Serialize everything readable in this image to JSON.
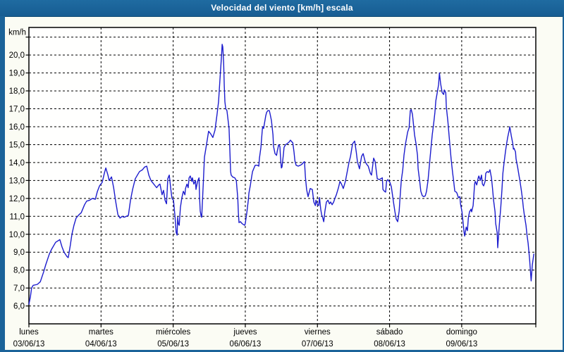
{
  "window": {
    "title": "Velocidad del viento [km/h] escala",
    "title_bar_color": "#1b6399",
    "border_color": "#1b6399",
    "background": "#fbfcf4"
  },
  "chart_data": {
    "type": "line",
    "title": "Velocidad del viento [km/h] escala",
    "line_color": "#1c1ccd",
    "grid": "dashed-black",
    "legend_position": "none",
    "y_axis": {
      "unit_label": "km/h",
      "min": 6,
      "max": 21,
      "tick_step": 1,
      "tick_values": [
        20,
        19,
        18,
        17,
        16,
        15,
        14,
        13,
        12,
        11,
        10,
        9,
        8,
        7,
        6
      ],
      "tick_labels": [
        "20,0",
        "19,0",
        "18,0",
        "17,0",
        "16,0",
        "15,0",
        "14,0",
        "13,0",
        "12,0",
        "11,0",
        "10,0",
        "9,0",
        "8,0",
        "7,0",
        "6,0"
      ]
    },
    "x_axis": {
      "hours_total": 168,
      "day_span_hours": 24,
      "days": [
        {
          "name": "lunes",
          "date": "03/06/13"
        },
        {
          "name": "martes",
          "date": "04/06/13"
        },
        {
          "name": "miércoles",
          "date": "05/06/13"
        },
        {
          "name": "jueves",
          "date": "06/06/13"
        },
        {
          "name": "viernes",
          "date": "07/06/13"
        },
        {
          "name": "sábado",
          "date": "08/06/13"
        },
        {
          "name": "domingo",
          "date": "09/06/13"
        }
      ]
    },
    "points": [
      [
        0.0,
        6.1
      ],
      [
        0.5,
        6.5
      ],
      [
        0.9,
        7.0
      ],
      [
        1.4,
        7.15
      ],
      [
        2.8,
        7.2
      ],
      [
        3.8,
        7.35
      ],
      [
        4.9,
        7.9
      ],
      [
        5.6,
        8.3
      ],
      [
        6.8,
        8.9
      ],
      [
        7.5,
        9.15
      ],
      [
        8.9,
        9.55
      ],
      [
        10.3,
        9.7
      ],
      [
        11.0,
        9.3
      ],
      [
        11.7,
        9.0
      ],
      [
        12.7,
        8.75
      ],
      [
        13.1,
        8.7
      ],
      [
        13.8,
        9.4
      ],
      [
        14.3,
        10.0
      ],
      [
        15.0,
        10.5
      ],
      [
        15.7,
        10.9
      ],
      [
        16.7,
        11.1
      ],
      [
        17.4,
        11.2
      ],
      [
        18.5,
        11.65
      ],
      [
        19.2,
        11.85
      ],
      [
        20.2,
        11.9
      ],
      [
        21.1,
        12.0
      ],
      [
        22.1,
        11.95
      ],
      [
        22.8,
        12.4
      ],
      [
        23.5,
        12.7
      ],
      [
        24.4,
        12.9
      ],
      [
        25.1,
        13.4
      ],
      [
        25.6,
        13.7
      ],
      [
        26.3,
        13.3
      ],
      [
        26.7,
        13.0
      ],
      [
        27.5,
        13.2
      ],
      [
        28.2,
        12.6
      ],
      [
        28.9,
        11.8
      ],
      [
        29.6,
        11.1
      ],
      [
        30.3,
        10.9
      ],
      [
        31.0,
        11.0
      ],
      [
        31.7,
        10.95
      ],
      [
        32.4,
        11.0
      ],
      [
        33.1,
        11.05
      ],
      [
        33.8,
        11.9
      ],
      [
        34.5,
        12.5
      ],
      [
        35.4,
        13.1
      ],
      [
        36.1,
        13.3
      ],
      [
        36.8,
        13.5
      ],
      [
        37.8,
        13.6
      ],
      [
        38.5,
        13.75
      ],
      [
        39.2,
        13.8
      ],
      [
        39.9,
        13.3
      ],
      [
        40.6,
        13.0
      ],
      [
        41.3,
        12.85
      ],
      [
        42.0,
        12.7
      ],
      [
        42.5,
        12.6
      ],
      [
        43.2,
        12.75
      ],
      [
        43.6,
        12.8
      ],
      [
        44.3,
        12.2
      ],
      [
        44.8,
        12.45
      ],
      [
        45.3,
        11.9
      ],
      [
        45.8,
        11.7
      ],
      [
        46.2,
        13.1
      ],
      [
        46.7,
        13.3
      ],
      [
        47.2,
        12.55
      ],
      [
        47.6,
        12.0
      ],
      [
        48.1,
        11.9
      ],
      [
        48.6,
        11.0
      ],
      [
        49.0,
        10.1
      ],
      [
        49.3,
        9.95
      ],
      [
        49.5,
        10.95
      ],
      [
        49.7,
        10.6
      ],
      [
        50.0,
        10.5
      ],
      [
        50.4,
        11.5
      ],
      [
        50.9,
        12.05
      ],
      [
        51.4,
        12.4
      ],
      [
        51.9,
        12.2
      ],
      [
        52.1,
        12.55
      ],
      [
        52.6,
        12.8
      ],
      [
        53.0,
        12.6
      ],
      [
        53.3,
        13.15
      ],
      [
        53.7,
        13.25
      ],
      [
        54.2,
        12.95
      ],
      [
        54.4,
        13.15
      ],
      [
        54.9,
        12.8
      ],
      [
        55.4,
        13.0
      ],
      [
        55.6,
        12.5
      ],
      [
        56.1,
        12.95
      ],
      [
        56.6,
        13.15
      ],
      [
        56.8,
        12.05
      ],
      [
        57.0,
        11.3
      ],
      [
        57.3,
        11.0
      ],
      [
        57.5,
        10.95
      ],
      [
        58.0,
        12.8
      ],
      [
        58.4,
        14.3
      ],
      [
        59.1,
        15.0
      ],
      [
        59.8,
        15.75
      ],
      [
        60.5,
        15.6
      ],
      [
        61.2,
        15.4
      ],
      [
        61.9,
        15.8
      ],
      [
        62.6,
        16.7
      ],
      [
        63.1,
        17.4
      ],
      [
        63.6,
        18.7
      ],
      [
        64.1,
        20.0
      ],
      [
        64.3,
        20.6
      ],
      [
        64.5,
        20.45
      ],
      [
        64.8,
        19.6
      ],
      [
        65.0,
        18.3
      ],
      [
        65.2,
        17.4
      ],
      [
        65.5,
        17.0
      ],
      [
        65.9,
        16.9
      ],
      [
        66.6,
        15.9
      ],
      [
        66.9,
        14.5
      ],
      [
        67.1,
        13.5
      ],
      [
        67.3,
        13.3
      ],
      [
        67.8,
        13.2
      ],
      [
        68.5,
        13.15
      ],
      [
        69.0,
        13.0
      ],
      [
        69.5,
        12.0
      ],
      [
        69.7,
        11.2
      ],
      [
        69.9,
        10.65
      ],
      [
        70.4,
        10.7
      ],
      [
        70.9,
        10.6
      ],
      [
        71.3,
        10.55
      ],
      [
        71.8,
        10.5
      ],
      [
        72.0,
        10.6
      ],
      [
        72.5,
        11.2
      ],
      [
        73.0,
        11.9
      ],
      [
        73.2,
        12.3
      ],
      [
        73.7,
        12.75
      ],
      [
        74.1,
        13.2
      ],
      [
        74.4,
        13.5
      ],
      [
        74.9,
        13.7
      ],
      [
        75.3,
        13.85
      ],
      [
        76.0,
        13.85
      ],
      [
        76.5,
        13.8
      ],
      [
        76.7,
        14.25
      ],
      [
        77.2,
        14.85
      ],
      [
        77.7,
        15.9
      ],
      [
        77.9,
        16.0
      ],
      [
        78.1,
        15.9
      ],
      [
        78.8,
        16.6
      ],
      [
        79.1,
        16.8
      ],
      [
        79.5,
        16.9
      ],
      [
        80.0,
        16.9
      ],
      [
        80.2,
        16.75
      ],
      [
        80.7,
        16.35
      ],
      [
        81.2,
        15.55
      ],
      [
        81.4,
        14.9
      ],
      [
        81.9,
        14.5
      ],
      [
        82.4,
        14.4
      ],
      [
        82.6,
        14.6
      ],
      [
        83.1,
        15.0
      ],
      [
        83.5,
        14.9
      ],
      [
        83.8,
        14.1
      ],
      [
        84.0,
        13.7
      ],
      [
        84.2,
        13.75
      ],
      [
        84.7,
        14.5
      ],
      [
        84.9,
        14.85
      ],
      [
        85.4,
        15.0
      ],
      [
        85.9,
        15.05
      ],
      [
        86.6,
        15.15
      ],
      [
        87.0,
        15.25
      ],
      [
        87.8,
        15.1
      ],
      [
        88.2,
        14.6
      ],
      [
        88.5,
        14.1
      ],
      [
        88.9,
        13.85
      ],
      [
        89.6,
        13.8
      ],
      [
        90.3,
        13.85
      ],
      [
        90.8,
        13.9
      ],
      [
        91.3,
        14.0
      ],
      [
        91.7,
        14.05
      ],
      [
        92.0,
        13.2
      ],
      [
        92.4,
        12.5
      ],
      [
        92.9,
        12.1
      ],
      [
        93.6,
        12.55
      ],
      [
        94.3,
        12.5
      ],
      [
        94.8,
        11.8
      ],
      [
        95.3,
        11.6
      ],
      [
        95.5,
        11.9
      ],
      [
        96.0,
        11.65
      ],
      [
        96.4,
        11.6
      ],
      [
        96.7,
        12.05
      ],
      [
        97.1,
        11.4
      ],
      [
        97.4,
        11.1
      ],
      [
        97.8,
        10.9
      ],
      [
        98.1,
        10.7
      ],
      [
        98.5,
        11.3
      ],
      [
        99.0,
        11.8
      ],
      [
        99.5,
        11.9
      ],
      [
        100.0,
        11.7
      ],
      [
        100.4,
        11.8
      ],
      [
        100.9,
        11.65
      ],
      [
        101.4,
        11.8
      ],
      [
        101.8,
        12.0
      ],
      [
        102.3,
        12.2
      ],
      [
        103.0,
        12.6
      ],
      [
        103.5,
        12.95
      ],
      [
        104.0,
        12.8
      ],
      [
        104.6,
        12.55
      ],
      [
        105.3,
        12.95
      ],
      [
        106.1,
        13.65
      ],
      [
        106.5,
        14.0
      ],
      [
        107.0,
        14.35
      ],
      [
        107.7,
        15.05
      ],
      [
        108.4,
        15.2
      ],
      [
        108.9,
        14.6
      ],
      [
        109.3,
        14.05
      ],
      [
        110.0,
        13.65
      ],
      [
        110.7,
        14.35
      ],
      [
        111.2,
        14.5
      ],
      [
        111.9,
        14.05
      ],
      [
        112.4,
        13.9
      ],
      [
        112.9,
        13.8
      ],
      [
        113.6,
        13.4
      ],
      [
        114.0,
        13.3
      ],
      [
        114.7,
        14.25
      ],
      [
        115.2,
        14.05
      ],
      [
        115.9,
        13.1
      ],
      [
        116.6,
        13.05
      ],
      [
        117.1,
        13.1
      ],
      [
        117.6,
        13.15
      ],
      [
        117.8,
        12.5
      ],
      [
        118.3,
        12.4
      ],
      [
        118.7,
        12.35
      ],
      [
        119.0,
        12.95
      ],
      [
        119.4,
        13.05
      ],
      [
        120.1,
        12.9
      ],
      [
        120.6,
        12.65
      ],
      [
        121.3,
        11.8
      ],
      [
        121.8,
        11.25
      ],
      [
        122.2,
        10.85
      ],
      [
        122.7,
        10.7
      ],
      [
        123.2,
        11.3
      ],
      [
        123.4,
        11.85
      ],
      [
        123.9,
        13.0
      ],
      [
        124.4,
        13.6
      ],
      [
        124.8,
        14.4
      ],
      [
        125.3,
        15.05
      ],
      [
        125.8,
        15.5
      ],
      [
        126.0,
        15.7
      ],
      [
        126.5,
        15.95
      ],
      [
        126.9,
        16.9
      ],
      [
        127.2,
        16.95
      ],
      [
        127.6,
        16.7
      ],
      [
        128.1,
        15.9
      ],
      [
        128.3,
        15.55
      ],
      [
        128.8,
        15.05
      ],
      [
        129.3,
        14.4
      ],
      [
        129.5,
        13.65
      ],
      [
        130.0,
        13.0
      ],
      [
        130.4,
        12.4
      ],
      [
        130.9,
        12.15
      ],
      [
        131.4,
        12.1
      ],
      [
        131.9,
        12.15
      ],
      [
        132.3,
        12.4
      ],
      [
        132.8,
        13.0
      ],
      [
        133.5,
        14.3
      ],
      [
        134.2,
        15.55
      ],
      [
        134.7,
        16.2
      ],
      [
        135.1,
        16.8
      ],
      [
        135.4,
        17.45
      ],
      [
        135.9,
        17.95
      ],
      [
        136.3,
        18.35
      ],
      [
        136.6,
        19.0
      ],
      [
        137.0,
        18.4
      ],
      [
        137.5,
        17.9
      ],
      [
        138.0,
        17.8
      ],
      [
        138.2,
        18.05
      ],
      [
        138.7,
        17.9
      ],
      [
        138.9,
        17.1
      ],
      [
        139.4,
        16.3
      ],
      [
        139.8,
        15.5
      ],
      [
        140.1,
        14.9
      ],
      [
        140.5,
        14.15
      ],
      [
        141.0,
        13.4
      ],
      [
        141.3,
        13.0
      ],
      [
        141.7,
        12.4
      ],
      [
        142.2,
        12.35
      ],
      [
        142.4,
        12.3
      ],
      [
        142.9,
        12.05
      ],
      [
        143.4,
        12.1
      ],
      [
        143.6,
        11.7
      ],
      [
        144.1,
        11.25
      ],
      [
        144.5,
        10.6
      ],
      [
        144.8,
        10.1
      ],
      [
        145.0,
        9.9
      ],
      [
        145.5,
        10.4
      ],
      [
        145.9,
        10.2
      ],
      [
        146.2,
        10.9
      ],
      [
        146.6,
        11.25
      ],
      [
        147.1,
        11.4
      ],
      [
        147.3,
        11.25
      ],
      [
        147.8,
        11.6
      ],
      [
        148.3,
        12.8
      ],
      [
        148.5,
        12.95
      ],
      [
        149.0,
        12.75
      ],
      [
        149.5,
        13.15
      ],
      [
        149.7,
        13.25
      ],
      [
        150.2,
        13.0
      ],
      [
        150.6,
        13.3
      ],
      [
        150.9,
        12.8
      ],
      [
        151.3,
        12.7
      ],
      [
        151.8,
        12.95
      ],
      [
        152.0,
        13.4
      ],
      [
        152.5,
        13.5
      ],
      [
        153.0,
        13.45
      ],
      [
        153.4,
        13.6
      ],
      [
        153.9,
        13.15
      ],
      [
        154.2,
        12.65
      ],
      [
        154.6,
        11.9
      ],
      [
        155.1,
        11.25
      ],
      [
        155.3,
        10.6
      ],
      [
        155.8,
        10.1
      ],
      [
        156.0,
        9.25
      ],
      [
        156.5,
        10.5
      ],
      [
        157.0,
        11.5
      ],
      [
        157.4,
        12.5
      ],
      [
        157.7,
        13.4
      ],
      [
        158.1,
        14.0
      ],
      [
        158.6,
        14.65
      ],
      [
        158.9,
        15.0
      ],
      [
        159.3,
        15.4
      ],
      [
        159.8,
        15.8
      ],
      [
        160.0,
        16.0
      ],
      [
        160.5,
        15.5
      ],
      [
        161.0,
        15.05
      ],
      [
        161.2,
        14.75
      ],
      [
        161.4,
        14.8
      ],
      [
        161.9,
        14.6
      ],
      [
        162.1,
        14.2
      ],
      [
        162.6,
        13.75
      ],
      [
        163.1,
        13.25
      ],
      [
        163.3,
        13.05
      ],
      [
        163.8,
        12.5
      ],
      [
        164.2,
        12.0
      ],
      [
        164.5,
        11.5
      ],
      [
        164.9,
        11.0
      ],
      [
        165.4,
        10.5
      ],
      [
        165.7,
        10.0
      ],
      [
        166.1,
        9.5
      ],
      [
        166.6,
        8.6
      ],
      [
        166.8,
        8.1
      ],
      [
        167.1,
        7.4
      ],
      [
        167.5,
        8.3
      ],
      [
        168.0,
        8.9
      ]
    ]
  }
}
